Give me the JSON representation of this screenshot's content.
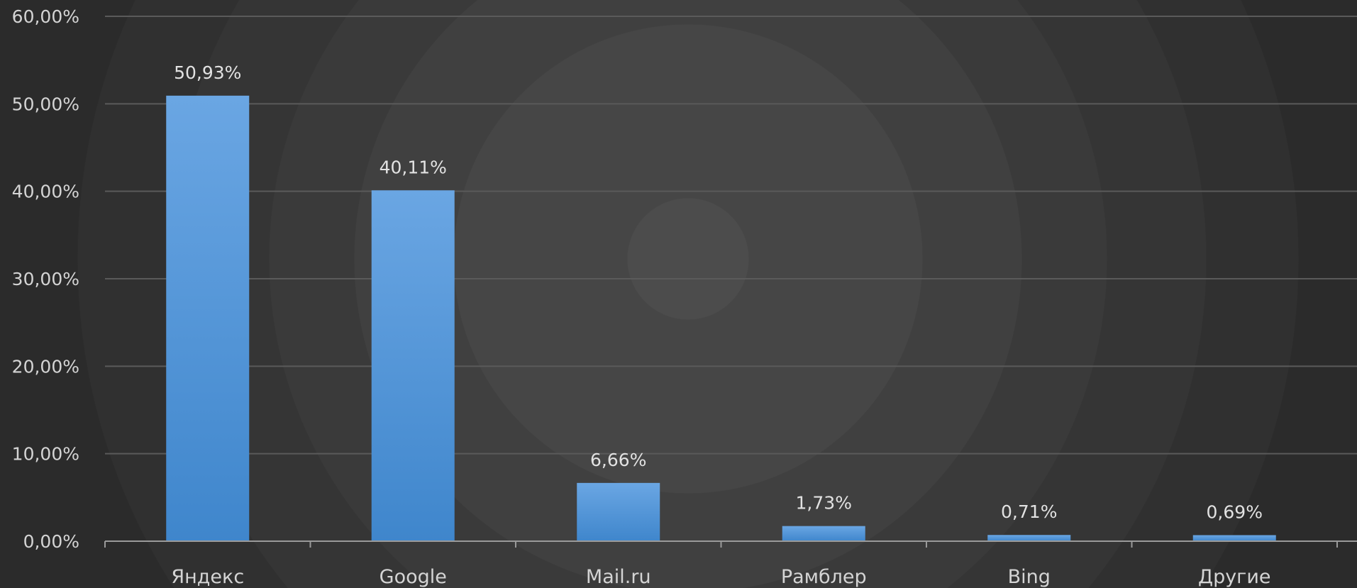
{
  "chart_data": {
    "type": "bar",
    "categories": [
      "Яндекс",
      "Google",
      "Mail.ru",
      "Рамблер",
      "Bing",
      "Другие"
    ],
    "values": [
      50.93,
      40.11,
      6.66,
      1.73,
      0.71,
      0.69
    ],
    "data_labels": [
      "50,93%",
      "40,11%",
      "6,66%",
      "1,73%",
      "0,71%",
      "0,69%"
    ],
    "y_ticks": [
      0,
      10,
      20,
      30,
      40,
      50,
      60
    ],
    "y_tick_labels": [
      "0,00%",
      "10,00%",
      "20,00%",
      "30,00%",
      "40,00%",
      "50,00%",
      "60,00%"
    ],
    "ylim": [
      0,
      60
    ],
    "grid": true,
    "legend": "none",
    "colors": {
      "bar_top": "#6aa6e3",
      "bar_bottom": "#3f86cc",
      "background": "#3a3a3a"
    }
  }
}
